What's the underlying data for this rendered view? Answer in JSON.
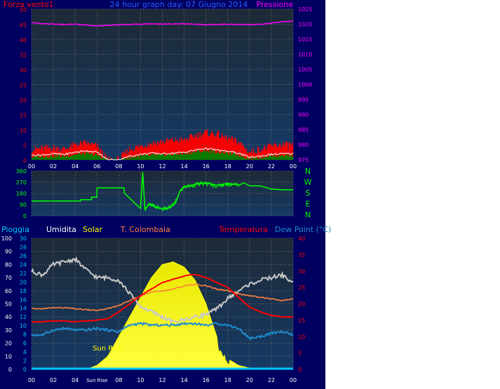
{
  "colors": {
    "background": "#000060",
    "plot_top": "#1e2a36",
    "plot_bottom": "#153a66",
    "grid": "#6b6b6b",
    "wind": "#ff0000",
    "gust": "#ffffff",
    "avg_wind": "#008000",
    "pressure": "#ff00ff",
    "direction": "#00ff00",
    "rain": "#00c8ff",
    "humidity": "#c8c8c8",
    "solar": "#ffff00",
    "t_colombaia": "#ff8040",
    "temperature": "#ff0000",
    "dew_point": "#1e8cd0",
    "right_labels": "#00ff00"
  },
  "chart_data": [
    {
      "type": "line",
      "title": "24 hour graph day: 07 Giugno 2014",
      "left_axis": {
        "label": "Forza vento1",
        "ylim": [
          0,
          50
        ],
        "ticks": [
          "0",
          "5",
          "10",
          "15",
          "20",
          "25",
          "30",
          "35",
          "40",
          "45",
          "50"
        ]
      },
      "right_axis": {
        "label": "Pressione",
        "ylim": [
          975,
          1025
        ],
        "ticks": [
          "975",
          "980",
          "985",
          "990",
          "995",
          "1000",
          "1005",
          "1010",
          "1015",
          "1020",
          "1025"
        ]
      },
      "x_ticks": [
        "00",
        "02",
        "04",
        "06",
        "08",
        "10",
        "12",
        "14",
        "16",
        "18",
        "20",
        "22",
        "00"
      ],
      "xlim": [
        0,
        24
      ],
      "grid": true,
      "series": [
        {
          "values_x": [
            0,
            1,
            2,
            3,
            4,
            5,
            6,
            7,
            8,
            9,
            10,
            11,
            12,
            13,
            14,
            15,
            16,
            17,
            18,
            19,
            20,
            21,
            22,
            23,
            24
          ],
          "values": [
            1020.5,
            1020.2,
            1020.0,
            1019.9,
            1020.0,
            1019.7,
            1019.4,
            1019.6,
            1019.8,
            1019.9,
            1020.0,
            1020.1,
            1020.0,
            1020.1,
            1020.2,
            1020.0,
            1019.8,
            1019.9,
            1020.0,
            1019.9,
            1019.8,
            1020.0,
            1020.3,
            1020.8,
            1021.0
          ]
        },
        {
          "values_x": [
            0,
            1,
            2,
            3,
            4,
            5,
            6,
            7,
            8,
            9,
            10,
            11,
            12,
            13,
            14,
            15,
            16,
            17,
            18,
            19,
            20,
            21,
            22,
            23,
            24
          ],
          "values": [
            3.5,
            3.8,
            4.0,
            3.5,
            5.0,
            5.5,
            4.5,
            0.0,
            0.0,
            3.5,
            4.5,
            5.5,
            6.0,
            6.5,
            6.5,
            8.0,
            9.0,
            8.5,
            7.0,
            6.0,
            2.5,
            3.5,
            4.5,
            5.0,
            5.0
          ]
        },
        {
          "values_x": [
            0,
            1,
            2,
            3,
            4,
            5,
            6,
            7,
            8,
            9,
            10,
            11,
            12,
            13,
            14,
            15,
            16,
            17,
            18,
            19,
            20,
            21,
            22,
            23,
            24
          ],
          "values": [
            1.5,
            1.6,
            2.0,
            1.8,
            2.5,
            3.0,
            2.5,
            0.0,
            0.0,
            1.2,
            1.8,
            2.2,
            2.0,
            2.2,
            2.5,
            3.2,
            3.8,
            3.2,
            2.8,
            2.2,
            0.8,
            1.2,
            1.8,
            2.0,
            2.0
          ]
        },
        {
          "values_x": [
            0,
            1,
            2,
            3,
            4,
            5,
            6,
            7,
            8,
            9,
            10,
            11,
            12,
            13,
            14,
            15,
            16,
            17,
            18,
            19,
            20,
            21,
            22,
            23,
            24
          ],
          "values": [
            1.0,
            1.1,
            1.3,
            1.2,
            1.8,
            2.0,
            1.6,
            0.0,
            0.0,
            0.8,
            1.2,
            1.5,
            1.6,
            1.8,
            2.0,
            2.6,
            3.0,
            2.6,
            2.2,
            1.6,
            0.5,
            0.9,
            1.3,
            1.5,
            1.5
          ]
        }
      ]
    },
    {
      "type": "line",
      "ylim": [
        0,
        360
      ],
      "y_ticks": [
        "0",
        "90",
        "180",
        "270",
        "360"
      ],
      "right_labels": [
        "N",
        "W",
        "S",
        "E",
        "N"
      ],
      "x_ticks": [
        "00",
        "02",
        "04",
        "06",
        "08",
        "10",
        "12",
        "14",
        "16",
        "18",
        "20",
        "22",
        "00"
      ],
      "xlim": [
        0,
        24
      ],
      "grid": true,
      "series": [
        {
          "values_x": [
            0,
            4.5,
            4.5,
            5.5,
            5.5,
            6.0,
            6.0,
            8.5,
            8.5,
            9.5,
            10.0,
            10.2,
            10.4,
            10.8,
            11.5,
            12.0,
            12.5,
            12.8,
            13.2,
            13.6,
            14.0,
            14.6,
            15.0,
            16.0,
            17.0,
            18.0,
            19.0,
            19.5,
            20.0,
            21.0,
            22.0,
            23.0,
            24.0
          ],
          "values": [
            120,
            120,
            130,
            130,
            150,
            150,
            225,
            225,
            185,
            100,
            60,
            350,
            50,
            90,
            70,
            55,
            60,
            75,
            110,
            190,
            230,
            240,
            250,
            260,
            240,
            255,
            250,
            265,
            240,
            240,
            215,
            210,
            210
          ]
        }
      ]
    },
    {
      "type": "line",
      "legend": [
        "Pioggia",
        "Umidita",
        "Solar",
        "T. Colombaia",
        "Temperatura",
        "Dew Point (°C)"
      ],
      "left_axis_rain": {
        "ylim": [
          0,
          100
        ],
        "ticks": [
          "0",
          "10",
          "20",
          "30",
          "40",
          "50",
          "60",
          "70",
          "80",
          "90",
          "100"
        ]
      },
      "left_axis_inner": {
        "ylim": [
          0,
          30
        ],
        "ticks": [
          "0",
          "2",
          "4",
          "6",
          "8",
          "10",
          "12",
          "14",
          "16",
          "18",
          "20",
          "22",
          "24",
          "26",
          "28",
          "30"
        ]
      },
      "right_axis": {
        "ylim": [
          0,
          40
        ],
        "ticks": [
          "0",
          "5",
          "10",
          "15",
          "20",
          "25",
          "30",
          "35",
          "40"
        ]
      },
      "x_ticks": [
        "00",
        "02",
        "04",
        "Sun Rise",
        "08",
        "10",
        "12",
        "14",
        "16",
        "18",
        "20",
        "22",
        "00"
      ],
      "xlim": [
        0,
        24
      ],
      "grid": true,
      "annotation": "Sun Rise",
      "series": [
        {
          "name": "Umidita",
          "values_x": [
            0,
            1,
            2,
            3,
            4,
            5,
            6,
            7,
            8,
            9,
            10,
            11,
            12,
            13,
            14,
            15,
            16,
            17,
            18,
            19,
            20,
            21,
            22,
            23,
            24
          ],
          "values": [
            75,
            72,
            80,
            82,
            84,
            76,
            70,
            70,
            68,
            58,
            48,
            44,
            40,
            36,
            38,
            40,
            42,
            46,
            54,
            60,
            65,
            68,
            70,
            72,
            66
          ]
        },
        {
          "name": "Solar",
          "values_x": [
            5,
            6,
            7,
            8,
            9,
            10,
            11,
            12,
            13,
            14,
            15,
            16,
            17,
            18,
            19,
            20,
            21
          ],
          "values": [
            0,
            3,
            10,
            25,
            40,
            55,
            70,
            80,
            82,
            78,
            68,
            50,
            25,
            8,
            3,
            1,
            0
          ]
        },
        {
          "name": "T. Colombaia",
          "values_x": [
            0,
            1,
            2,
            3,
            4,
            5,
            6,
            7,
            8,
            9,
            10,
            11,
            12,
            13,
            14,
            15,
            16,
            17,
            18,
            19,
            20,
            21,
            22,
            23,
            24
          ],
          "values": [
            18.5,
            18.5,
            18.8,
            18.8,
            18.5,
            18.2,
            18.0,
            18.5,
            19.5,
            21.0,
            22.5,
            23.5,
            24.0,
            24.5,
            25.5,
            26.0,
            25.5,
            24.5,
            24.0,
            23.0,
            22.5,
            22.0,
            21.5,
            21.0,
            21.5
          ]
        },
        {
          "name": "Temperatura",
          "values_x": [
            0,
            1,
            2,
            3,
            4,
            5,
            6,
            7,
            8,
            9,
            10,
            11,
            12,
            13,
            14,
            15,
            16,
            17,
            18,
            19,
            20,
            21,
            22,
            23,
            24
          ],
          "values": [
            14.5,
            14.5,
            14.8,
            14.8,
            14.5,
            14.8,
            15.0,
            15.5,
            17.5,
            20.0,
            22.5,
            24.5,
            26.5,
            27.5,
            28.5,
            29.0,
            28.0,
            26.5,
            25.0,
            22.0,
            19.0,
            17.5,
            16.5,
            16.0,
            16.0
          ]
        },
        {
          "name": "Dew Point (°C)",
          "values_x": [
            0,
            1,
            2,
            3,
            4,
            5,
            6,
            7,
            8,
            9,
            10,
            11,
            12,
            13,
            14,
            15,
            16,
            17,
            18,
            19,
            20,
            21,
            22,
            23,
            24
          ],
          "values": [
            10.5,
            10.5,
            12.0,
            12.5,
            12.0,
            12.0,
            12.5,
            12.0,
            11.5,
            13.5,
            14.0,
            13.5,
            13.5,
            13.5,
            14.0,
            14.0,
            13.5,
            14.0,
            13.5,
            12.5,
            9.5,
            10.0,
            11.0,
            11.5,
            10.5
          ]
        },
        {
          "name": "Pioggia",
          "values_x": [
            0,
            24
          ],
          "values": [
            0,
            0
          ]
        }
      ]
    }
  ]
}
